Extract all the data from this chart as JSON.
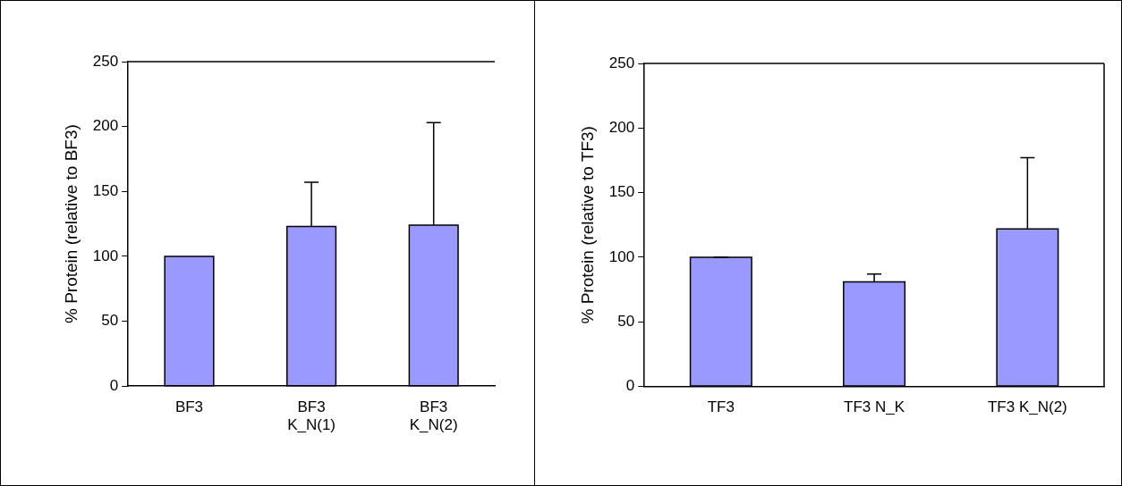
{
  "chart_data": [
    {
      "type": "bar",
      "categories": [
        "BF3",
        "BF3\nK_N(1)",
        "BF3\nK_N(2)"
      ],
      "values": [
        100,
        123,
        124
      ],
      "errors": [
        null,
        [
          123,
          157
        ],
        [
          124,
          203
        ]
      ],
      "color": "#9999ff",
      "ylabel": "% Protein (relative to BF3)",
      "ylim": [
        0,
        250
      ],
      "yticks": [
        0,
        50,
        100,
        150,
        200,
        250
      ],
      "grid": false,
      "legend": false
    },
    {
      "type": "bar",
      "categories": [
        "TF3",
        "TF3 N_K",
        "TF3 K_N(2)"
      ],
      "values": [
        100,
        81,
        122
      ],
      "errors": [
        [
          100,
          100
        ],
        [
          81,
          87
        ],
        [
          122,
          177
        ]
      ],
      "color": "#9999ff",
      "ylabel": "% Protein (relative to TF3)",
      "ylim": [
        0,
        250
      ],
      "yticks": [
        0,
        50,
        100,
        150,
        200,
        250
      ],
      "grid": false,
      "legend": false
    }
  ]
}
